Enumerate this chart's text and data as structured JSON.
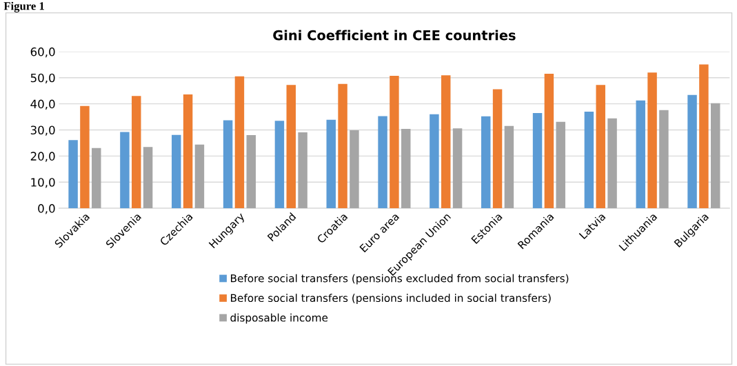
{
  "chart_data": {
    "type": "bar",
    "title": "Gini Coefficient in CEE countries",
    "annotations": [
      "Figure 1"
    ],
    "categories": [
      "Slovakia",
      "Slovenia",
      "Czechia",
      "Hungary",
      "Poland",
      "Croatia",
      "Euro area",
      "European Union",
      "Estonia",
      "Romania",
      "Latvia",
      "Lithuania",
      "Bulgaria"
    ],
    "series": [
      {
        "name": "Before social transfers (pensions excluded from social transfers)",
        "color": "#5b9bd5",
        "values": [
          26.1,
          29.2,
          28.1,
          33.7,
          33.5,
          33.9,
          35.3,
          36.0,
          35.2,
          36.5,
          37.0,
          41.3,
          43.4
        ]
      },
      {
        "name": "Before social transfers (pensions included in social transfers)",
        "color": "#ed7d31",
        "values": [
          39.2,
          43.0,
          43.6,
          50.5,
          47.2,
          47.6,
          50.7,
          50.9,
          45.6,
          51.5,
          47.2,
          52.0,
          55.1
        ]
      },
      {
        "name": "disposable income",
        "color": "#a5a5a5",
        "values": [
          23.1,
          23.5,
          24.4,
          28.0,
          29.1,
          29.9,
          30.4,
          30.6,
          31.5,
          33.1,
          34.4,
          37.6,
          40.2
        ]
      }
    ],
    "ylim": [
      0,
      60
    ],
    "yticks": [
      {
        "value": 0,
        "label": "0,0"
      },
      {
        "value": 10,
        "label": "10,0"
      },
      {
        "value": 20,
        "label": "20,0"
      },
      {
        "value": 30,
        "label": "30,0"
      },
      {
        "value": 40,
        "label": "40,0"
      },
      {
        "value": 50,
        "label": "50,0"
      },
      {
        "value": 60,
        "label": "60,0"
      }
    ],
    "grid": "y",
    "legend": "bottom"
  }
}
